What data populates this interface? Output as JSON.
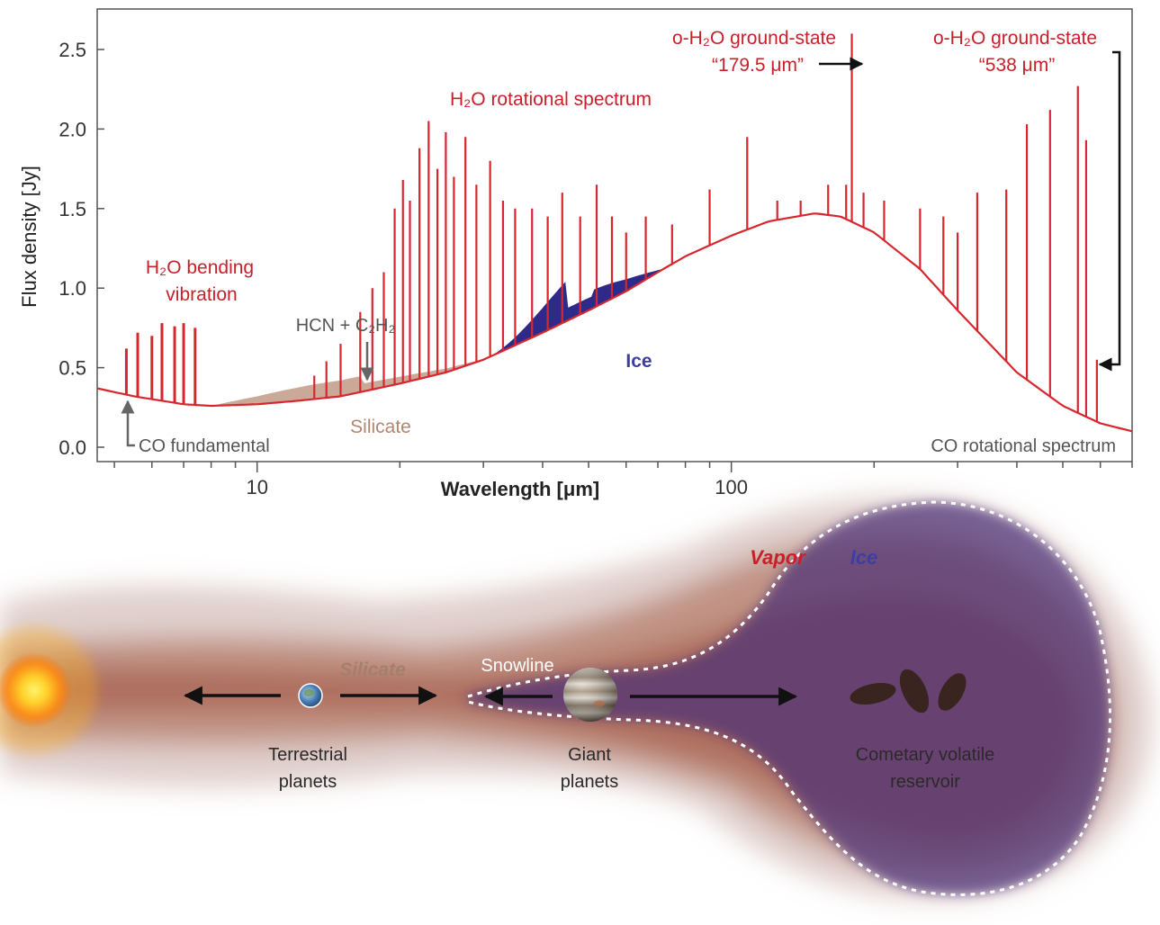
{
  "chart_data": {
    "type": "line",
    "xlabel": "Wavelength [μm]",
    "ylabel": "Flux density [Jy]",
    "x_scale": "log",
    "xlim": [
      4.6,
      700
    ],
    "ylim": [
      0,
      2.65
    ],
    "x_ticks": [
      {
        "value": 10,
        "label": "10"
      },
      {
        "value": 100,
        "label": "100"
      }
    ],
    "y_ticks": [
      {
        "value": 0.0,
        "label": "0.0"
      },
      {
        "value": 0.5,
        "label": "0.5"
      },
      {
        "value": 1.0,
        "label": "1.0"
      },
      {
        "value": 1.5,
        "label": "1.5"
      },
      {
        "value": 2.0,
        "label": "2.0"
      },
      {
        "value": 2.5,
        "label": "2.5"
      }
    ],
    "continuum": {
      "x": [
        4.6,
        5.5,
        7,
        8,
        10,
        12,
        15,
        20,
        25,
        30,
        40,
        50,
        60,
        70,
        80,
        100,
        120,
        150,
        170,
        200,
        250,
        300,
        400,
        500,
        600,
        700
      ],
      "y": [
        0.37,
        0.32,
        0.27,
        0.26,
        0.27,
        0.29,
        0.32,
        0.4,
        0.47,
        0.55,
        0.72,
        0.86,
        0.98,
        1.1,
        1.2,
        1.33,
        1.42,
        1.47,
        1.45,
        1.35,
        1.12,
        0.86,
        0.47,
        0.26,
        0.15,
        0.1
      ]
    },
    "emission_lines": {
      "x": [
        5.3,
        5.6,
        6.0,
        6.3,
        6.7,
        7.0,
        7.4,
        13.2,
        14.0,
        15.0,
        16.5,
        17.5,
        18.5,
        19.5,
        20.3,
        21.0,
        22.0,
        23.0,
        24.0,
        25.0,
        26.0,
        27.5,
        29.0,
        31.0,
        33.0,
        35.0,
        38.0,
        41.0,
        44.0,
        48.0,
        52.0,
        56.0,
        60.0,
        66.0,
        75.0,
        90.0,
        108.0,
        125.0,
        140.0,
        160.0,
        174.6,
        179.5,
        190.0,
        210.0,
        250.0,
        280.0,
        300.0,
        330.0,
        380.0,
        420.0,
        470.0,
        538.0,
        560.0,
        590.0
      ],
      "y": [
        0.62,
        0.72,
        0.7,
        0.78,
        0.76,
        0.78,
        0.75,
        0.45,
        0.54,
        0.65,
        0.85,
        1.0,
        1.1,
        1.5,
        1.68,
        1.55,
        1.88,
        2.05,
        1.75,
        1.98,
        1.7,
        1.95,
        1.65,
        1.8,
        1.55,
        1.5,
        1.5,
        1.45,
        1.6,
        1.45,
        1.65,
        1.45,
        1.35,
        1.45,
        1.4,
        1.62,
        1.95,
        1.55,
        1.55,
        1.65,
        1.65,
        2.6,
        1.6,
        1.55,
        1.5,
        1.45,
        1.35,
        1.6,
        1.62,
        2.03,
        2.12,
        2.27,
        1.93,
        0.55
      ]
    },
    "annotations": {
      "h2o_bending_1": "H₂O bending",
      "h2o_bending_2": "vibration",
      "hcn_c2h2": "HCN + C₂H₂",
      "h2o_rotational": "H₂O rotational spectrum",
      "o_h2o_179_1": "o-H₂O ground-state",
      "o_h2o_179_2": "“179.5 μm”",
      "o_h2o_538_1": "o-H₂O ground-state",
      "o_h2o_538_2": "“538 μm”",
      "ice": "Ice",
      "silicate": "Silicate",
      "co_fundamental": "CO fundamental",
      "co_rotational": "CO rotational spectrum"
    },
    "colors": {
      "spectrum": "#d8262e",
      "silicate": "#c29a86",
      "ice": "#2e2a8a"
    }
  },
  "diagram": {
    "labels": {
      "silicate": "Silicate",
      "snowline": "Snowline",
      "vapor": "Vapor",
      "ice": "Ice",
      "terrestrial_1": "Terrestrial",
      "terrestrial_2": "planets",
      "giant_1": "Giant",
      "giant_2": "planets",
      "cometary_1": "Cometary volatile",
      "cometary_2": "reservoir"
    },
    "icons": [
      "sun-icon",
      "earth-icon",
      "jupiter-icon",
      "comet-icon"
    ],
    "colors": {
      "disk": "#a8604a",
      "ice_region": "#4a2f78",
      "vapor_label": "#c8202a",
      "ice_label": "#3f3ea0"
    }
  }
}
